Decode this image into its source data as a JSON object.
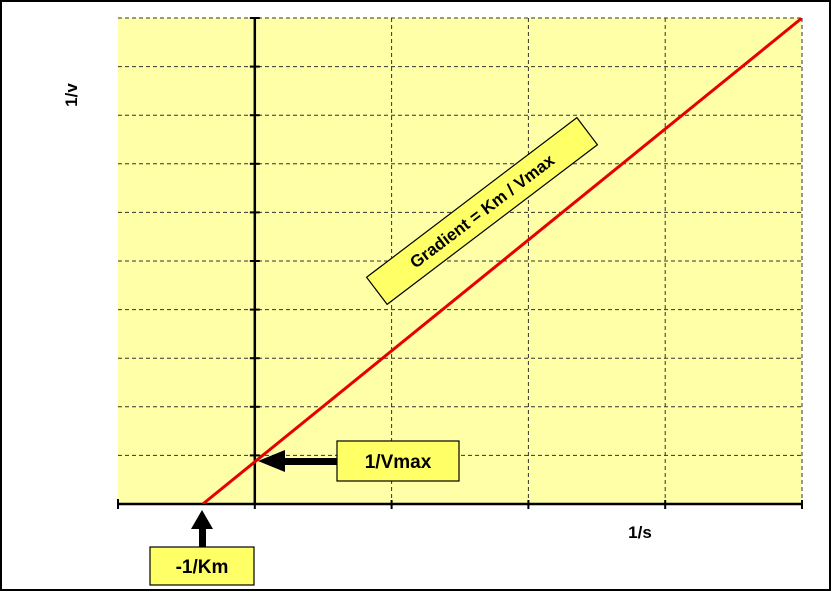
{
  "chart_data": {
    "type": "line",
    "title": "",
    "xlabel": "1/s",
    "ylabel": "1/v",
    "grid": true,
    "xlim": [
      -1,
      4
    ],
    "ylim": [
      0,
      10
    ],
    "x_gridlines": [
      -1,
      0,
      1,
      2,
      3,
      4
    ],
    "y_gridlines": [
      0,
      1,
      2,
      3,
      4,
      5,
      6,
      7,
      8,
      9,
      10
    ],
    "series": [
      {
        "x": [
          -0.38,
          4.0
        ],
        "y": [
          0.0,
          10.0
        ],
        "color": "#e60000"
      }
    ],
    "annotations": {
      "intercept_y": {
        "label": "1/Vmax",
        "x": 0,
        "y": 0.9
      },
      "intercept_x": {
        "label": "-1/Km",
        "x": -0.38,
        "y": 0
      },
      "gradient": {
        "label": "Gradient = Km / Vmax"
      }
    }
  },
  "colors": {
    "plot_bg": "#ffffa8",
    "frame": "#000000",
    "grid": "#333333",
    "line": "#e60000",
    "label_bg": "#ffff66"
  }
}
